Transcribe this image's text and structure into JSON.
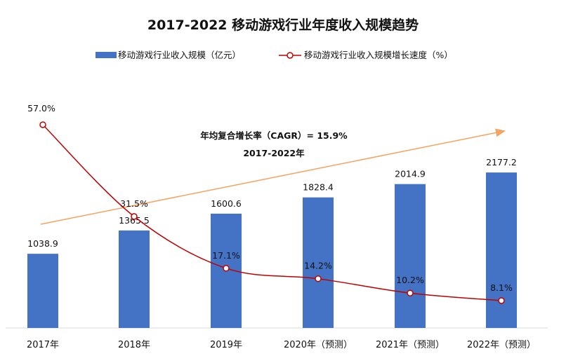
{
  "chart_data": {
    "type": "bar",
    "title": "2017-2022  移动游戏行业年度收入规模趋势",
    "categories": [
      "2017年",
      "2018年",
      "2019年",
      "2020年（预测）",
      "2021年（预测）",
      "2022年（预测）"
    ],
    "series": [
      {
        "name": "移动游戏行业收入规模（亿元）",
        "kind": "bar",
        "values": [
          1038.9,
          1365.5,
          1600.6,
          1828.4,
          2014.9,
          2177.2
        ],
        "labels": [
          "1038.9",
          "1365.5",
          "1600.6",
          "1828.4",
          "2014.9",
          "2177.2"
        ],
        "color": "#4472C4"
      },
      {
        "name": "移动游戏行业收入规模增长速度（%）",
        "kind": "line",
        "values": [
          57.0,
          31.5,
          17.1,
          14.2,
          10.2,
          8.1
        ],
        "labels": [
          "57.0%",
          "31.5%",
          "17.1%",
          "14.2%",
          "10.2%",
          "8.1%"
        ],
        "color": "#C00000"
      }
    ],
    "annotations": [
      "年均复合增长率（CAGR）= 15.9%",
      "2017-2022年"
    ],
    "trend_arrow_color": "#F4A460",
    "grid": false,
    "legend_position": "top"
  }
}
